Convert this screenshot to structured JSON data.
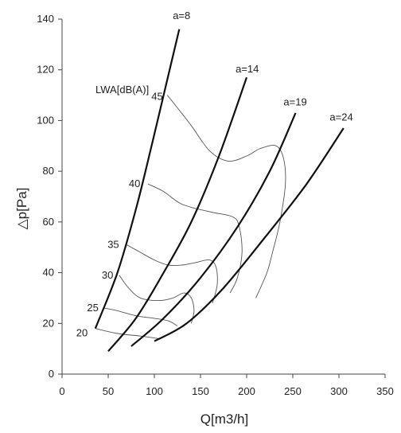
{
  "chart_data": {
    "type": "line",
    "title": "",
    "xlabel": "Q[m3/h]",
    "ylabel": "△p[Pa]",
    "xlim": [
      0,
      350
    ],
    "ylim": [
      0,
      140
    ],
    "xticks": [
      0,
      50,
      100,
      150,
      200,
      250,
      300,
      350
    ],
    "yticks": [
      0,
      20,
      40,
      60,
      80,
      100,
      120,
      140
    ],
    "grid": false,
    "fan_curves": [
      {
        "name": "a=8",
        "points": [
          [
            36,
            18
          ],
          [
            60,
            40
          ],
          [
            80,
            65
          ],
          [
            97,
            90
          ],
          [
            112,
            113
          ],
          [
            127,
            136
          ]
        ]
      },
      {
        "name": "a=14",
        "points": [
          [
            50,
            9
          ],
          [
            80,
            22
          ],
          [
            110,
            40
          ],
          [
            140,
            60
          ],
          [
            170,
            86
          ],
          [
            200,
            117
          ]
        ]
      },
      {
        "name": "a=19",
        "points": [
          [
            75,
            11
          ],
          [
            110,
            22
          ],
          [
            150,
            38
          ],
          [
            190,
            58
          ],
          [
            225,
            80
          ],
          [
            253,
            103
          ]
        ]
      },
      {
        "name": "a=24",
        "points": [
          [
            100,
            13
          ],
          [
            135,
            20
          ],
          [
            175,
            34
          ],
          [
            220,
            54
          ],
          [
            265,
            75
          ],
          [
            305,
            97
          ]
        ]
      }
    ],
    "sound_label_title": "LWA[dB(A)]",
    "sound_levels": [
      {
        "name": "45",
        "points": [
          [
            114,
            110
          ],
          [
            125,
            105
          ],
          [
            140,
            98
          ],
          [
            160,
            88
          ],
          [
            180,
            84
          ],
          [
            200,
            86
          ],
          [
            215,
            89
          ],
          [
            232,
            90
          ],
          [
            240,
            85
          ],
          [
            242,
            75
          ],
          [
            236,
            60
          ],
          [
            228,
            48
          ],
          [
            222,
            40
          ],
          [
            210,
            30
          ]
        ]
      },
      {
        "name": "40",
        "points": [
          [
            93,
            75
          ],
          [
            110,
            72
          ],
          [
            130,
            67
          ],
          [
            160,
            64
          ],
          [
            185,
            62
          ],
          [
            192,
            58
          ],
          [
            195,
            48
          ],
          [
            190,
            38
          ],
          [
            182,
            32
          ]
        ]
      },
      {
        "name": "35",
        "points": [
          [
            70,
            51
          ],
          [
            85,
            48
          ],
          [
            100,
            45
          ],
          [
            115,
            43
          ],
          [
            130,
            43
          ],
          [
            145,
            44
          ],
          [
            160,
            45
          ],
          [
            167,
            42
          ],
          [
            168,
            35
          ],
          [
            163,
            28
          ]
        ]
      },
      {
        "name": "30",
        "points": [
          [
            62,
            39
          ],
          [
            72,
            34
          ],
          [
            85,
            30
          ],
          [
            105,
            29
          ],
          [
            120,
            30
          ],
          [
            132,
            32
          ],
          [
            140,
            30
          ],
          [
            143,
            25
          ],
          [
            140,
            20
          ]
        ]
      },
      {
        "name": "25",
        "points": [
          [
            46,
            26
          ],
          [
            60,
            25
          ],
          [
            80,
            23
          ],
          [
            100,
            22
          ],
          [
            115,
            21
          ],
          [
            125,
            19
          ]
        ]
      },
      {
        "name": "20",
        "points": [
          [
            36,
            18
          ],
          [
            60,
            16
          ],
          [
            85,
            15
          ],
          [
            105,
            14
          ]
        ]
      }
    ],
    "curve_label_positions": {
      "a=8": [
        120,
        140
      ],
      "a=14": [
        188,
        119
      ],
      "a=19": [
        240,
        106
      ],
      "a=24": [
        290,
        100
      ]
    }
  }
}
